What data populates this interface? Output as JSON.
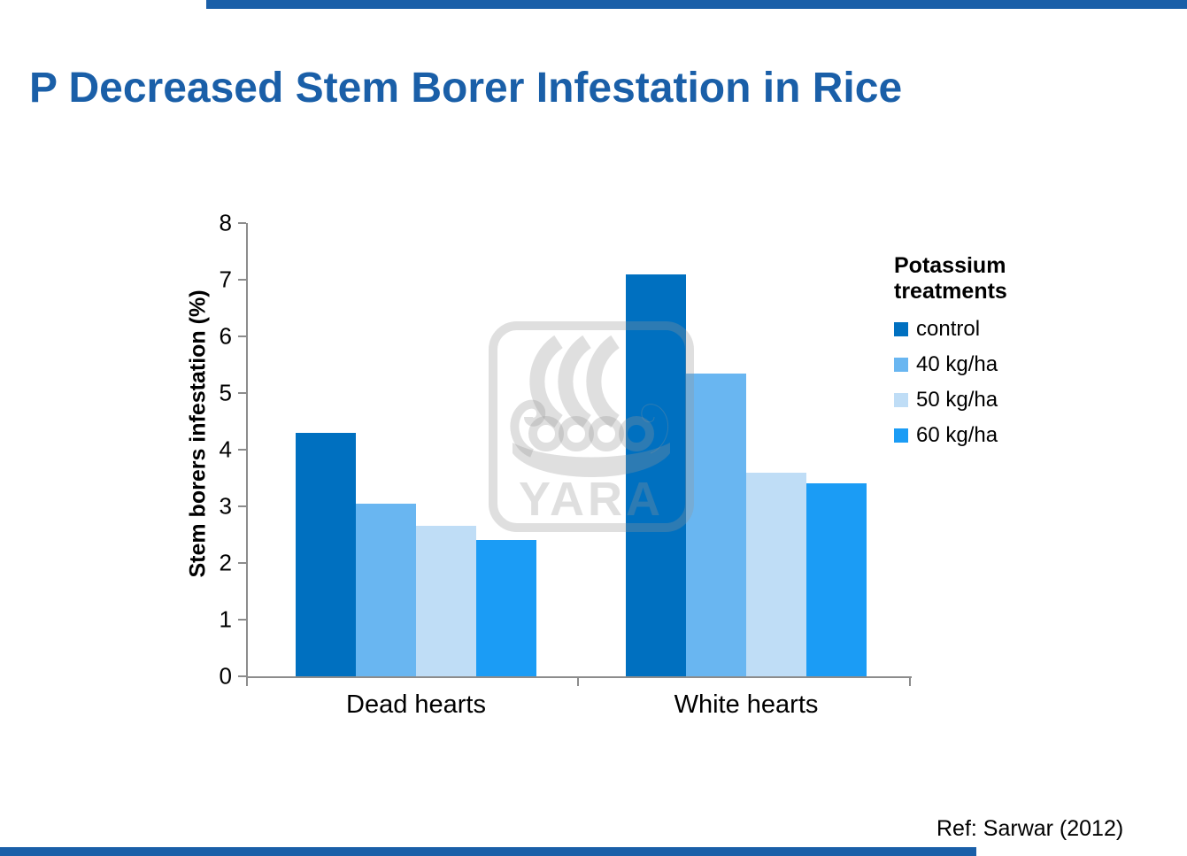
{
  "slide": {
    "title": "P Decreased Stem Borer Infestation in Rice",
    "title_color": "#1A5FA8",
    "accent_color": "#1A5FA8",
    "reference": "Ref: Sarwar (2012)",
    "watermark_text": "YARA"
  },
  "chart_data": {
    "type": "bar",
    "title": "",
    "categories": [
      "Dead hearts",
      "White hearts"
    ],
    "series": [
      {
        "name": "control",
        "color": "#0070C0",
        "values": [
          4.3,
          7.1
        ]
      },
      {
        "name": "40 kg/ha",
        "color": "#69B6F1",
        "values": [
          3.05,
          5.35
        ]
      },
      {
        "name": "50 kg/ha",
        "color": "#BFDDF6",
        "values": [
          2.65,
          3.6
        ]
      },
      {
        "name": "60 kg/ha",
        "color": "#1B9CF5",
        "values": [
          2.4,
          3.4
        ]
      }
    ],
    "xlabel": "",
    "ylabel": "Stem borers infestation (%)",
    "ylim": [
      0,
      8
    ],
    "ytick_step": 1,
    "grid": false,
    "legend_title": "Potassium treatments",
    "legend_position": "right"
  }
}
